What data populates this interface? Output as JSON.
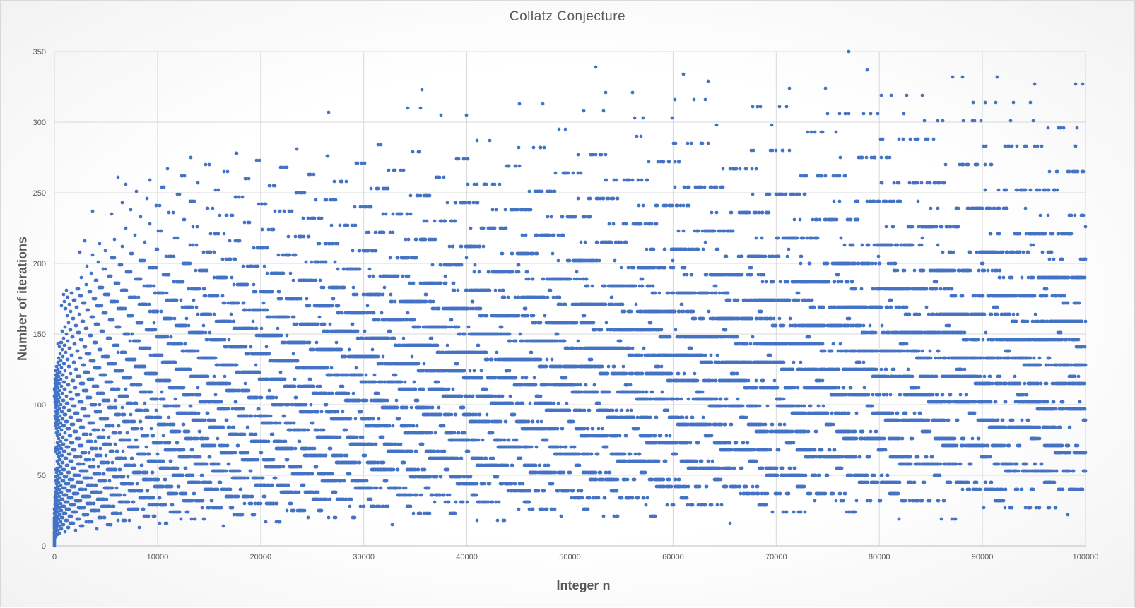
{
  "chart_data": {
    "type": "scatter",
    "title": "Collatz Conjecture",
    "xlabel": "Integer n",
    "ylabel": "Number of iterations",
    "xlim": [
      0,
      100000
    ],
    "ylim": [
      0,
      350
    ],
    "x_ticks": [
      0,
      10000,
      20000,
      30000,
      40000,
      50000,
      60000,
      70000,
      80000,
      90000,
      100000
    ],
    "y_ticks": [
      0,
      50,
      100,
      150,
      200,
      250,
      300,
      350
    ],
    "grid": true,
    "legend": "none",
    "marker_color": "#4472C4",
    "grid_color": "#d9d9d9",
    "series": [
      {
        "description": "Collatz stopping times for n = 1..100000 (computed)",
        "n_max": 100000,
        "max_point": [
          77031,
          350
        ]
      }
    ]
  }
}
